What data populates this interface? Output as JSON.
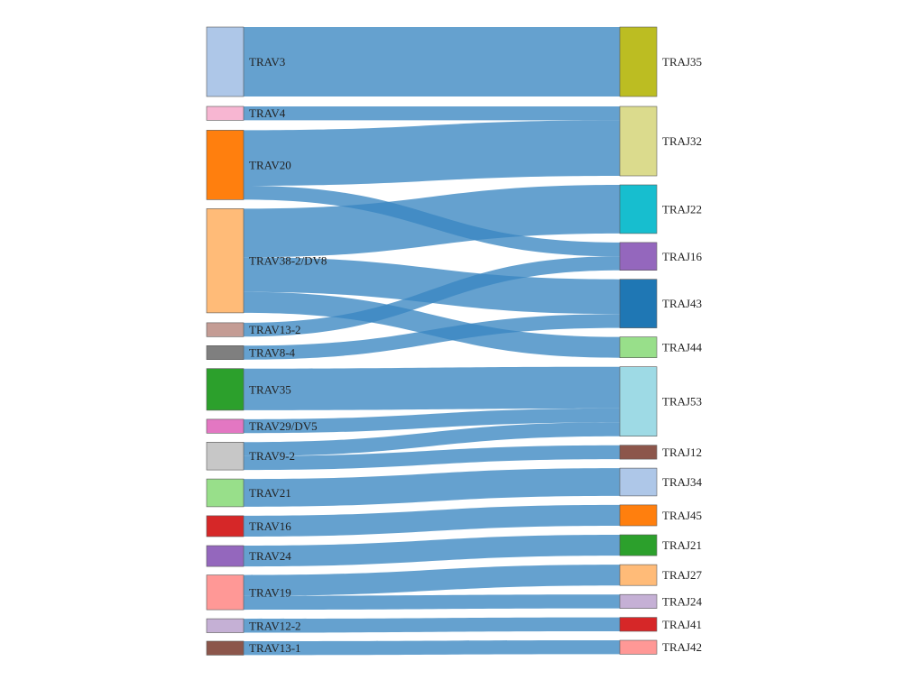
{
  "chart_data": {
    "type": "sankey",
    "title": "",
    "link_color": "#3a86c1",
    "left_nodes": [
      {
        "label": "TRAV3",
        "value": 5,
        "color": "#aec7e8"
      },
      {
        "label": "TRAV4",
        "value": 1,
        "color": "#f7b6d2"
      },
      {
        "label": "TRAV20",
        "value": 5,
        "color": "#ff7f0e"
      },
      {
        "label": "TRAV38-2/DV8",
        "value": 7.5,
        "color": "#ffbb78"
      },
      {
        "label": "TRAV13-2",
        "value": 1,
        "color": "#c49c94"
      },
      {
        "label": "TRAV8-4",
        "value": 1,
        "color": "#7f7f7f"
      },
      {
        "label": "TRAV35",
        "value": 3,
        "color": "#2ca02c"
      },
      {
        "label": "TRAV29/DV5",
        "value": 1,
        "color": "#e377c2"
      },
      {
        "label": "TRAV9-2",
        "value": 2,
        "color": "#c7c7c7"
      },
      {
        "label": "TRAV21",
        "value": 2,
        "color": "#98df8a"
      },
      {
        "label": "TRAV16",
        "value": 1.5,
        "color": "#d62728"
      },
      {
        "label": "TRAV24",
        "value": 1.5,
        "color": "#9467bd"
      },
      {
        "label": "TRAV19",
        "value": 2.5,
        "color": "#ff9896"
      },
      {
        "label": "TRAV12-2",
        "value": 1,
        "color": "#c5b0d5"
      },
      {
        "label": "TRAV13-1",
        "value": 1,
        "color": "#8c564b"
      }
    ],
    "right_nodes": [
      {
        "label": "TRAJ35",
        "value": 5,
        "color": "#bcbd22"
      },
      {
        "label": "TRAJ32",
        "value": 5,
        "color": "#dbdb8d"
      },
      {
        "label": "TRAJ22",
        "value": 3.5,
        "color": "#17becf"
      },
      {
        "label": "TRAJ16",
        "value": 2,
        "color": "#9467bd"
      },
      {
        "label": "TRAJ43",
        "value": 3.5,
        "color": "#1f77b4"
      },
      {
        "label": "TRAJ44",
        "value": 1.5,
        "color": "#98df8a"
      },
      {
        "label": "TRAJ53",
        "value": 5,
        "color": "#9edae5"
      },
      {
        "label": "TRAJ12",
        "value": 1,
        "color": "#8c564b"
      },
      {
        "label": "TRAJ34",
        "value": 2,
        "color": "#aec7e8"
      },
      {
        "label": "TRAJ45",
        "value": 1.5,
        "color": "#ff7f0e"
      },
      {
        "label": "TRAJ21",
        "value": 1.5,
        "color": "#2ca02c"
      },
      {
        "label": "TRAJ27",
        "value": 1.5,
        "color": "#ffbb78"
      },
      {
        "label": "TRAJ24",
        "value": 1,
        "color": "#c5b0d5"
      },
      {
        "label": "TRAJ41",
        "value": 1,
        "color": "#d62728"
      },
      {
        "label": "TRAJ42",
        "value": 1,
        "color": "#ff9896"
      }
    ],
    "links": [
      {
        "source": "TRAV3",
        "target": "TRAJ35",
        "value": 5
      },
      {
        "source": "TRAV4",
        "target": "TRAJ32",
        "value": 1
      },
      {
        "source": "TRAV20",
        "target": "TRAJ32",
        "value": 4
      },
      {
        "source": "TRAV20",
        "target": "TRAJ16",
        "value": 1
      },
      {
        "source": "TRAV38-2/DV8",
        "target": "TRAJ22",
        "value": 3.5
      },
      {
        "source": "TRAV38-2/DV8",
        "target": "TRAJ43",
        "value": 2.5
      },
      {
        "source": "TRAV38-2/DV8",
        "target": "TRAJ44",
        "value": 1.5
      },
      {
        "source": "TRAV13-2",
        "target": "TRAJ16",
        "value": 1
      },
      {
        "source": "TRAV8-4",
        "target": "TRAJ43",
        "value": 1
      },
      {
        "source": "TRAV35",
        "target": "TRAJ53",
        "value": 3
      },
      {
        "source": "TRAV29/DV5",
        "target": "TRAJ53",
        "value": 1
      },
      {
        "source": "TRAV9-2",
        "target": "TRAJ53",
        "value": 1
      },
      {
        "source": "TRAV9-2",
        "target": "TRAJ12",
        "value": 1
      },
      {
        "source": "TRAV21",
        "target": "TRAJ34",
        "value": 2
      },
      {
        "source": "TRAV16",
        "target": "TRAJ45",
        "value": 1.5
      },
      {
        "source": "TRAV24",
        "target": "TRAJ21",
        "value": 1.5
      },
      {
        "source": "TRAV19",
        "target": "TRAJ27",
        "value": 1.5
      },
      {
        "source": "TRAV19",
        "target": "TRAJ24",
        "value": 1
      },
      {
        "source": "TRAV12-2",
        "target": "TRAJ41",
        "value": 1
      },
      {
        "source": "TRAV13-1",
        "target": "TRAJ42",
        "value": 1
      }
    ]
  }
}
